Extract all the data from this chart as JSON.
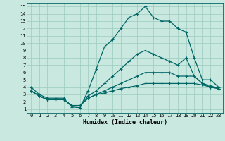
{
  "background_color": "#c8e8e0",
  "grid_color": "#99ccbb",
  "line_color": "#006666",
  "line_width": 0.9,
  "marker": "+",
  "marker_size": 3.5,
  "marker_edge_width": 0.8,
  "xlabel": "Humidex (Indice chaleur)",
  "xlabel_fontsize": 6.0,
  "xlim": [
    -0.5,
    23.5
  ],
  "ylim": [
    0.5,
    15.5
  ],
  "xticks": [
    0,
    1,
    2,
    3,
    4,
    5,
    6,
    7,
    8,
    9,
    10,
    11,
    12,
    13,
    14,
    15,
    16,
    17,
    18,
    19,
    20,
    21,
    22,
    23
  ],
  "yticks": [
    1,
    2,
    3,
    4,
    5,
    6,
    7,
    8,
    9,
    10,
    11,
    12,
    13,
    14,
    15
  ],
  "tick_fontsize": 5.0,
  "series": [
    {
      "x": [
        0,
        1,
        2,
        3,
        4,
        5,
        6,
        7,
        8,
        9,
        10,
        11,
        12,
        13,
        14,
        15,
        16,
        17,
        18,
        19,
        20,
        21,
        22,
        23
      ],
      "y": [
        4,
        3,
        2.5,
        2.5,
        2.5,
        1.3,
        1.2,
        3.5,
        6.5,
        9.5,
        10.5,
        12,
        13.5,
        14,
        15,
        13.5,
        13,
        13,
        12,
        11.5,
        8,
        5,
        5,
        4
      ]
    },
    {
      "x": [
        0,
        1,
        2,
        3,
        4,
        5,
        6,
        7,
        8,
        9,
        10,
        11,
        12,
        13,
        14,
        15,
        16,
        17,
        18,
        19,
        20,
        21,
        22,
        23
      ],
      "y": [
        3.5,
        2.8,
        2.3,
        2.3,
        2.3,
        1.5,
        1.5,
        2.8,
        3.5,
        4.5,
        5.5,
        6.5,
        7.5,
        8.5,
        9.0,
        8.5,
        8.0,
        7.5,
        7.0,
        8.0,
        5.5,
        4.5,
        4.2,
        3.8
      ]
    },
    {
      "x": [
        0,
        1,
        2,
        3,
        4,
        5,
        6,
        7,
        8,
        9,
        10,
        11,
        12,
        13,
        14,
        15,
        16,
        17,
        18,
        19,
        20,
        21,
        22,
        23
      ],
      "y": [
        3.5,
        2.8,
        2.3,
        2.3,
        2.3,
        1.5,
        1.5,
        2.5,
        3.0,
        3.5,
        4.0,
        4.5,
        5.0,
        5.5,
        6.0,
        6.0,
        6.0,
        6.0,
        5.5,
        5.5,
        5.5,
        4.5,
        4.0,
        3.8
      ]
    },
    {
      "x": [
        0,
        1,
        2,
        3,
        4,
        5,
        6,
        7,
        8,
        9,
        10,
        11,
        12,
        13,
        14,
        15,
        16,
        17,
        18,
        19,
        20,
        21,
        22,
        23
      ],
      "y": [
        3.5,
        2.8,
        2.3,
        2.3,
        2.3,
        1.5,
        1.5,
        2.5,
        3.0,
        3.2,
        3.5,
        3.8,
        4.0,
        4.2,
        4.5,
        4.5,
        4.5,
        4.5,
        4.5,
        4.5,
        4.5,
        4.3,
        4.0,
        3.8
      ]
    }
  ]
}
